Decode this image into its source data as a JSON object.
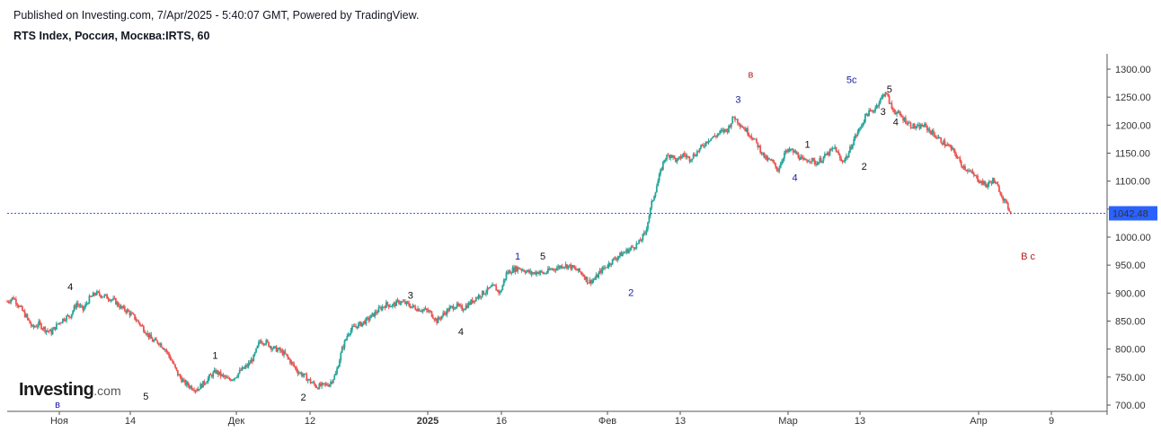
{
  "header": {
    "published": "Published on Investing.com, 7/Apr/2025 - 5:40:07 GMT, Powered by TradingView.",
    "symbol": "RTS Index, Россия, Москва:IRTS, 60"
  },
  "logo": {
    "name": "Investing",
    "suffix": ".com"
  },
  "colors": {
    "up": "#26a69a",
    "down": "#ef5350",
    "price_line": "#2962ff",
    "price_label_bg": "#2962ff",
    "axis": "#555555"
  },
  "chart_data": {
    "type": "candlestick",
    "interval": "60",
    "ylim": [
      690,
      1315
    ],
    "y_ticks": [
      "1300.00",
      "1250.00",
      "1200.00",
      "1150.00",
      "1100.00",
      "1050.00",
      "1000.00",
      "950.00",
      "900.00",
      "850.00",
      "800.00",
      "750.00",
      "700.00"
    ],
    "x_tick_labels": [
      "Ноя",
      "14",
      "Дек",
      "12",
      "2025",
      "16",
      "Фев",
      "13",
      "Мар",
      "13",
      "Апр",
      "9"
    ],
    "last_price": 1042.48,
    "last_price_label": "1042.48",
    "price_path": [
      [
        0,
        885
      ],
      [
        1,
        892
      ],
      [
        2,
        875
      ],
      [
        3,
        858
      ],
      [
        4,
        838
      ],
      [
        5,
        845
      ],
      [
        6,
        835
      ],
      [
        7,
        830
      ],
      [
        8,
        845
      ],
      [
        9,
        855
      ],
      [
        10,
        860
      ],
      [
        11,
        882
      ],
      [
        12,
        870
      ],
      [
        13,
        890
      ],
      [
        14,
        900
      ],
      [
        15,
        896
      ],
      [
        16,
        892
      ],
      [
        17,
        886
      ],
      [
        18,
        874
      ],
      [
        19,
        868
      ],
      [
        20,
        858
      ],
      [
        21,
        845
      ],
      [
        22,
        830
      ],
      [
        23,
        815
      ],
      [
        24,
        812
      ],
      [
        25,
        800
      ],
      [
        26,
        780
      ],
      [
        27,
        755
      ],
      [
        28,
        740
      ],
      [
        29,
        733
      ],
      [
        30,
        728
      ],
      [
        31,
        738
      ],
      [
        32,
        750
      ],
      [
        33,
        760
      ],
      [
        34,
        752
      ],
      [
        35,
        745
      ],
      [
        36,
        750
      ],
      [
        37,
        762
      ],
      [
        38,
        770
      ],
      [
        39,
        785
      ],
      [
        40,
        815
      ],
      [
        41,
        812
      ],
      [
        42,
        802
      ],
      [
        43,
        798
      ],
      [
        44,
        790
      ],
      [
        45,
        775
      ],
      [
        46,
        760
      ],
      [
        47,
        752
      ],
      [
        48,
        742
      ],
      [
        49,
        733
      ],
      [
        50,
        735
      ],
      [
        51,
        738
      ],
      [
        52,
        755
      ],
      [
        53,
        800
      ],
      [
        54,
        830
      ],
      [
        55,
        840
      ],
      [
        56,
        845
      ],
      [
        57,
        852
      ],
      [
        58,
        862
      ],
      [
        59,
        872
      ],
      [
        60,
        880
      ],
      [
        61,
        878
      ],
      [
        62,
        885
      ],
      [
        63,
        882
      ],
      [
        64,
        876
      ],
      [
        65,
        872
      ],
      [
        66,
        870
      ],
      [
        67,
        865
      ],
      [
        68,
        850
      ],
      [
        69,
        862
      ],
      [
        70,
        872
      ],
      [
        71,
        878
      ],
      [
        72,
        872
      ],
      [
        73,
        880
      ],
      [
        74,
        890
      ],
      [
        75,
        898
      ],
      [
        76,
        905
      ],
      [
        77,
        912
      ],
      [
        78,
        900
      ],
      [
        79,
        935
      ],
      [
        80,
        942
      ],
      [
        81,
        945
      ],
      [
        82,
        940
      ],
      [
        83,
        935
      ],
      [
        84,
        938
      ],
      [
        85,
        935
      ],
      [
        86,
        942
      ],
      [
        87,
        945
      ],
      [
        88,
        950
      ],
      [
        89,
        948
      ],
      [
        90,
        942
      ],
      [
        91,
        935
      ],
      [
        92,
        920
      ],
      [
        93,
        925
      ],
      [
        94,
        940
      ],
      [
        95,
        950
      ],
      [
        96,
        960
      ],
      [
        97,
        968
      ],
      [
        98,
        975
      ],
      [
        99,
        982
      ],
      [
        100,
        990
      ],
      [
        101,
        1008
      ],
      [
        102,
        1060
      ],
      [
        103,
        1100
      ],
      [
        104,
        1140
      ],
      [
        105,
        1148
      ],
      [
        106,
        1135
      ],
      [
        107,
        1148
      ],
      [
        108,
        1140
      ],
      [
        109,
        1150
      ],
      [
        110,
        1162
      ],
      [
        111,
        1175
      ],
      [
        112,
        1180
      ],
      [
        113,
        1188
      ],
      [
        114,
        1192
      ],
      [
        115,
        1215
      ],
      [
        116,
        1202
      ],
      [
        117,
        1190
      ],
      [
        118,
        1178
      ],
      [
        119,
        1160
      ],
      [
        120,
        1140
      ],
      [
        121,
        1135
      ],
      [
        122,
        1120
      ],
      [
        123,
        1150
      ],
      [
        124,
        1155
      ],
      [
        125,
        1148
      ],
      [
        126,
        1135
      ],
      [
        127,
        1140
      ],
      [
        128,
        1132
      ],
      [
        129,
        1140
      ],
      [
        130,
        1150
      ],
      [
        131,
        1160
      ],
      [
        132,
        1135
      ],
      [
        133,
        1145
      ],
      [
        134,
        1175
      ],
      [
        135,
        1195
      ],
      [
        136,
        1220
      ],
      [
        137,
        1225
      ],
      [
        138,
        1242
      ],
      [
        139,
        1260
      ],
      [
        140,
        1230
      ],
      [
        141,
        1220
      ],
      [
        142,
        1210
      ],
      [
        143,
        1200
      ],
      [
        144,
        1195
      ],
      [
        145,
        1200
      ],
      [
        146,
        1190
      ],
      [
        147,
        1180
      ],
      [
        148,
        1170
      ],
      [
        149,
        1162
      ],
      [
        150,
        1150
      ],
      [
        151,
        1130
      ],
      [
        152,
        1120
      ],
      [
        153,
        1110
      ],
      [
        154,
        1100
      ],
      [
        155,
        1092
      ],
      [
        156,
        1102
      ],
      [
        157,
        1085
      ],
      [
        158,
        1060
      ],
      [
        159,
        1043
      ]
    ],
    "annotations": [
      {
        "text": "4",
        "color": "black",
        "x": "2024-11-08",
        "y": 905
      },
      {
        "text": "в",
        "color": "navy",
        "x": "2024-11-06",
        "y": 695
      },
      {
        "text": "5",
        "color": "black",
        "x": "2024-11-20",
        "y": 710
      },
      {
        "text": "1",
        "color": "black",
        "x": "2024-12-01",
        "y": 783
      },
      {
        "text": "2",
        "color": "black",
        "x": "2024-12-15",
        "y": 708
      },
      {
        "text": "3",
        "color": "black",
        "x": "2025-01-01",
        "y": 890
      },
      {
        "text": "4",
        "color": "black",
        "x": "2025-01-09",
        "y": 825
      },
      {
        "text": "1",
        "color": "navy",
        "x": "2025-01-18",
        "y": 960
      },
      {
        "text": "5",
        "color": "black",
        "x": "2025-01-22",
        "y": 960
      },
      {
        "text": "2",
        "color": "navy",
        "x": "2025-02-05",
        "y": 895
      },
      {
        "text": "3",
        "color": "navy",
        "x": "2025-02-22",
        "y": 1240
      },
      {
        "text": "в",
        "color": "darkred",
        "x": "2025-02-24",
        "y": 1285
      },
      {
        "text": "1",
        "color": "black",
        "x": "2025-03-05",
        "y": 1160
      },
      {
        "text": "4",
        "color": "navy",
        "x": "2025-03-03",
        "y": 1100
      },
      {
        "text": "2",
        "color": "black",
        "x": "2025-03-14",
        "y": 1120
      },
      {
        "text": "5c",
        "color": "navy",
        "x": "2025-03-12",
        "y": 1275
      },
      {
        "text": "5",
        "color": "black",
        "x": "2025-03-18",
        "y": 1258
      },
      {
        "text": "3",
        "color": "black",
        "x": "2025-03-17",
        "y": 1218
      },
      {
        "text": "4",
        "color": "black",
        "x": "2025-03-19",
        "y": 1200
      },
      {
        "text": "B c",
        "color": "darkred",
        "x": "2025-04-09",
        "y": 960
      }
    ]
  }
}
